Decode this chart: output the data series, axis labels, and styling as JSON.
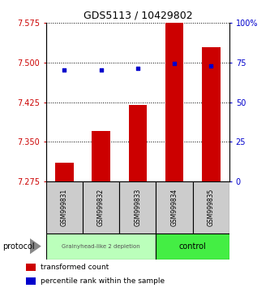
{
  "title": "GDS5113 / 10429802",
  "samples": [
    "GSM999831",
    "GSM999832",
    "GSM999833",
    "GSM999834",
    "GSM999835"
  ],
  "bar_values": [
    7.31,
    7.37,
    7.42,
    7.575,
    7.53
  ],
  "bar_bottom": 7.275,
  "percentile_values": [
    70.5,
    70.5,
    71.5,
    74.5,
    73.0
  ],
  "ylim_left": [
    7.275,
    7.575
  ],
  "ylim_right": [
    0,
    100
  ],
  "yticks_left": [
    7.275,
    7.35,
    7.425,
    7.5,
    7.575
  ],
  "yticks_right": [
    0,
    25,
    50,
    75,
    100
  ],
  "bar_color": "#cc0000",
  "dot_color": "#0000cc",
  "group1_label": "Grainyhead-like 2 depletion",
  "group2_label": "control",
  "group1_color": "#bbffbb",
  "group2_color": "#44ee44",
  "protocol_label": "protocol",
  "legend_bar_label": "transformed count",
  "legend_dot_label": "percentile rank within the sample",
  "bg_color": "#ffffff",
  "title_fontsize": 9,
  "tick_label_color_left": "#cc0000",
  "tick_label_color_right": "#0000cc",
  "label_box_color": "#cccccc"
}
